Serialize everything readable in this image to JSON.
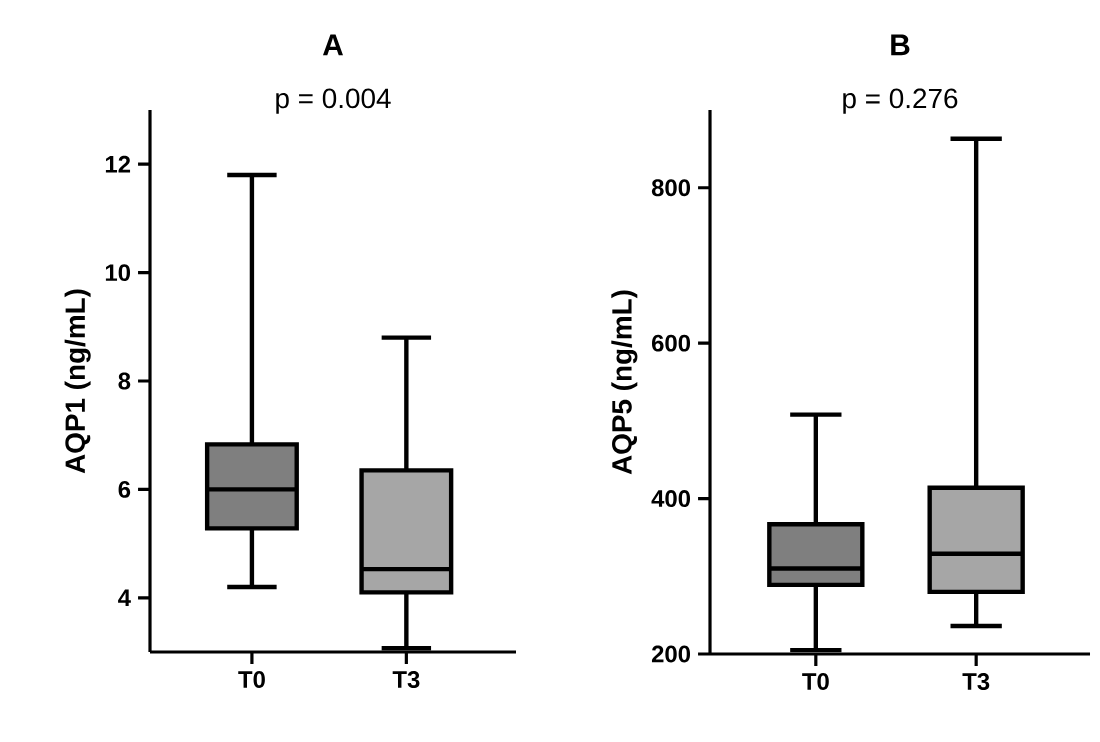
{
  "chart_data": [
    {
      "type": "box",
      "title": "A",
      "ylabel": "AQP1 (ng/mL)",
      "categories": [
        "T0",
        "T3"
      ],
      "annotations": [
        "p = 0.004"
      ],
      "ylim": [
        3,
        13
      ],
      "yticks": [
        4,
        6,
        8,
        10,
        12
      ],
      "colors": [
        "#7f7f7f",
        "#a6a6a6"
      ],
      "boxes": [
        {
          "low": 4.2,
          "q1": 5.28,
          "median": 6.0,
          "q3": 6.83,
          "high": 11.8
        },
        {
          "low": 3.07,
          "q1": 4.1,
          "median": 4.53,
          "q3": 6.35,
          "high": 8.8
        }
      ]
    },
    {
      "type": "box",
      "title": "B",
      "ylabel": "AQP5 (ng/mL)",
      "categories": [
        "T0",
        "T3"
      ],
      "annotations": [
        "p = 0.276"
      ],
      "ylim": [
        200,
        900
      ],
      "yticks": [
        200,
        400,
        600,
        800
      ],
      "colors": [
        "#7f7f7f",
        "#a6a6a6"
      ],
      "boxes": [
        {
          "low": 205,
          "q1": 289,
          "median": 310,
          "q3": 367,
          "high": 508
        },
        {
          "low": 236,
          "q1": 280,
          "median": 329,
          "q3": 414,
          "high": 863
        }
      ]
    }
  ]
}
